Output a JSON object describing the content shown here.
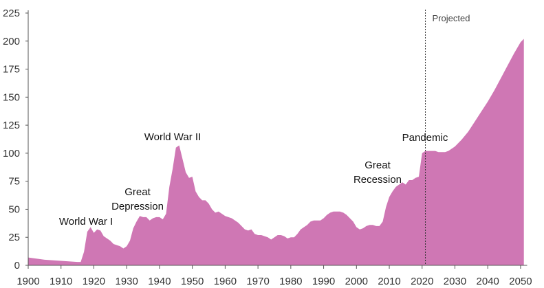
{
  "chart_data": {
    "type": "area",
    "x": [
      1900,
      1905,
      1910,
      1915,
      1916,
      1917,
      1918,
      1919,
      1920,
      1921,
      1922,
      1923,
      1924,
      1925,
      1926,
      1927,
      1928,
      1929,
      1930,
      1931,
      1932,
      1933,
      1934,
      1935,
      1936,
      1937,
      1938,
      1939,
      1940,
      1941,
      1942,
      1943,
      1944,
      1945,
      1946,
      1947,
      1948,
      1949,
      1950,
      1951,
      1952,
      1953,
      1954,
      1955,
      1956,
      1957,
      1958,
      1959,
      1960,
      1961,
      1962,
      1963,
      1964,
      1965,
      1966,
      1967,
      1968,
      1969,
      1970,
      1971,
      1972,
      1973,
      1974,
      1975,
      1976,
      1977,
      1978,
      1979,
      1980,
      1981,
      1982,
      1983,
      1984,
      1985,
      1986,
      1987,
      1988,
      1989,
      1990,
      1991,
      1992,
      1993,
      1994,
      1995,
      1996,
      1997,
      1998,
      1999,
      2000,
      2001,
      2002,
      2003,
      2004,
      2005,
      2006,
      2007,
      2008,
      2009,
      2010,
      2011,
      2012,
      2013,
      2014,
      2015,
      2016,
      2017,
      2018,
      2019,
      2020,
      2021,
      2022,
      2023,
      2024,
      2025,
      2026,
      2027,
      2028,
      2029,
      2030,
      2032,
      2034,
      2036,
      2038,
      2040,
      2042,
      2044,
      2046,
      2048,
      2050,
      2051
    ],
    "values": [
      7,
      5,
      4,
      3,
      3,
      12,
      30,
      34,
      29,
      32,
      31,
      26,
      24,
      22,
      19,
      18,
      17,
      15,
      17,
      22,
      33,
      39,
      44,
      43,
      43,
      40,
      42,
      43,
      43,
      41,
      46,
      70,
      86,
      105,
      107,
      95,
      83,
      78,
      79,
      66,
      61,
      58,
      58,
      55,
      50,
      47,
      48,
      46,
      44,
      43,
      42,
      40,
      38,
      35,
      32,
      31,
      32,
      28,
      27,
      27,
      26,
      25,
      23,
      25,
      27,
      27,
      26,
      24,
      25,
      25,
      28,
      32,
      34,
      36,
      39,
      40,
      40,
      40,
      42,
      45,
      47,
      48,
      48,
      48,
      47,
      45,
      42,
      39,
      34,
      32,
      33,
      35,
      36,
      36,
      35,
      35,
      39,
      52,
      61,
      66,
      70,
      72,
      74,
      72,
      76,
      76,
      78,
      79,
      100,
      102,
      102,
      102,
      102,
      101,
      101,
      101,
      102,
      104,
      106,
      112,
      119,
      128,
      137,
      146,
      156,
      167,
      178,
      189,
      199,
      202
    ],
    "color": "#cf77b4",
    "xlim": [
      1900,
      2052
    ],
    "xticks": [
      1900,
      1910,
      1920,
      1930,
      1940,
      1950,
      1960,
      1970,
      1980,
      1990,
      2000,
      2010,
      2020,
      2030,
      2040,
      2050
    ],
    "ylim": [
      0,
      225
    ],
    "yticks": [
      0,
      25,
      50,
      75,
      100,
      125,
      150,
      175,
      200,
      225
    ],
    "projection_start": 2021,
    "projection_label": "Projected",
    "annotations": [
      [
        "World War I"
      ],
      [
        "Great",
        "Depression"
      ],
      [
        "World War II"
      ],
      [
        "Great",
        "Recession"
      ],
      [
        "Pandemic"
      ]
    ]
  }
}
